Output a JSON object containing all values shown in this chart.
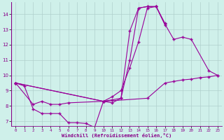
{
  "xlabel": "Windchill (Refroidissement éolien,°C)",
  "bg_color": "#cff0ea",
  "line_color": "#990099",
  "grid_color": "#b0d0cc",
  "xlim": [
    -0.5,
    23.5
  ],
  "ylim": [
    6.7,
    14.8
  ],
  "yticks": [
    7,
    8,
    9,
    10,
    11,
    12,
    13,
    14
  ],
  "xticks": [
    0,
    1,
    2,
    3,
    4,
    5,
    6,
    7,
    8,
    9,
    10,
    11,
    12,
    13,
    14,
    15,
    16,
    17,
    18,
    19,
    20,
    21,
    22,
    23
  ],
  "series": [
    {
      "x": [
        0,
        1,
        2,
        3,
        4,
        5,
        6,
        7,
        8,
        9,
        10,
        11,
        12,
        13,
        14,
        15,
        16,
        17
      ],
      "y": [
        9.5,
        9.3,
        7.8,
        7.5,
        7.5,
        7.5,
        6.9,
        6.9,
        6.85,
        6.6,
        8.3,
        8.2,
        8.5,
        12.9,
        14.4,
        14.5,
        14.5,
        13.4
      ]
    },
    {
      "x": [
        0,
        2,
        3,
        4,
        5,
        6,
        10,
        11,
        12,
        13,
        14,
        15,
        16,
        17
      ],
      "y": [
        9.5,
        8.1,
        8.3,
        8.1,
        8.1,
        8.2,
        8.3,
        8.4,
        8.5,
        11.0,
        14.4,
        14.5,
        14.5,
        13.3
      ]
    },
    {
      "x": [
        0,
        10,
        11,
        12,
        13,
        14,
        15,
        16,
        17,
        18,
        19,
        20,
        22,
        23
      ],
      "y": [
        9.5,
        8.3,
        8.6,
        9.0,
        10.5,
        12.2,
        14.4,
        14.5,
        13.35,
        12.35,
        12.5,
        12.35,
        10.3,
        10.0
      ]
    },
    {
      "x": [
        0,
        10,
        15,
        17,
        18,
        19,
        20,
        21,
        22,
        23
      ],
      "y": [
        9.5,
        8.3,
        8.5,
        9.5,
        9.6,
        9.7,
        9.75,
        9.85,
        9.9,
        10.0
      ]
    }
  ]
}
